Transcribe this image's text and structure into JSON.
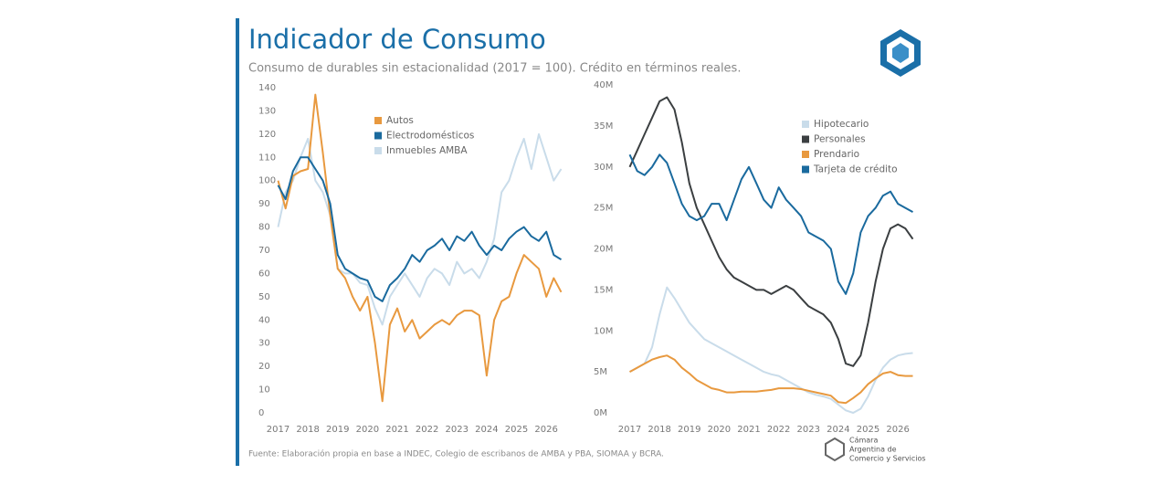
{
  "header": {
    "title": "Indicador de Consumo",
    "subtitle": "Consumo de durables sin estacionalidad (2017 = 100). Crédito en términos reales."
  },
  "footer": {
    "source": "Fuente: Elaboración propia en base a INDEC, Colegio de escribanos de AMBA y PBA, SIOMAA y BCRA.",
    "org": [
      "Cámara",
      "Argentina de",
      "Comercio y Servicios"
    ]
  },
  "chart_data": [
    {
      "type": "line",
      "x": [
        2017,
        2017.25,
        2017.5,
        2017.75,
        2018,
        2018.25,
        2018.5,
        2018.75,
        2019,
        2019.25,
        2019.5,
        2019.75,
        2020,
        2020.25,
        2020.5,
        2020.75,
        2021,
        2021.25,
        2021.5,
        2021.75,
        2022,
        2022.25,
        2022.5,
        2022.75,
        2023,
        2023.25,
        2023.5,
        2023.75,
        2024,
        2024.25,
        2024.5,
        2024.75,
        2025,
        2025.25,
        2025.5,
        2025.75,
        2026,
        2026.25,
        2026.5
      ],
      "xlim": [
        2016.8,
        2026.7
      ],
      "xticks": [
        2017,
        2018,
        2019,
        2020,
        2021,
        2022,
        2023,
        2024,
        2025,
        2026
      ],
      "ylim": [
        0,
        140
      ],
      "yticks": [
        0,
        10,
        20,
        30,
        40,
        50,
        60,
        70,
        80,
        90,
        100,
        110,
        120,
        130,
        140
      ],
      "series": [
        {
          "name": "Inmuebles AMBA",
          "color": "#c9dcea",
          "values": [
            80,
            95,
            100,
            110,
            118,
            100,
            95,
            85,
            62,
            60,
            60,
            56,
            55,
            45,
            38,
            50,
            55,
            60,
            55,
            50,
            58,
            62,
            60,
            55,
            65,
            60,
            62,
            58,
            65,
            75,
            95,
            100,
            110,
            118,
            105,
            120,
            110,
            100,
            105
          ]
        },
        {
          "name": "Autos",
          "color": "#e8993f",
          "values": [
            100,
            88,
            102,
            104,
            105,
            137,
            112,
            85,
            62,
            58,
            50,
            44,
            50,
            30,
            5,
            38,
            45,
            35,
            40,
            32,
            35,
            38,
            40,
            38,
            42,
            44,
            44,
            42,
            16,
            40,
            48,
            50,
            60,
            68,
            65,
            62,
            50,
            58,
            52
          ]
        },
        {
          "name": "Electrodomésticos",
          "color": "#1a6a9e",
          "values": [
            98,
            92,
            104,
            110,
            110,
            105,
            100,
            90,
            68,
            62,
            60,
            58,
            57,
            50,
            48,
            55,
            58,
            62,
            68,
            65,
            70,
            72,
            75,
            70,
            76,
            74,
            78,
            72,
            68,
            72,
            70,
            75,
            78,
            80,
            76,
            74,
            78,
            68,
            66
          ]
        }
      ]
    },
    {
      "type": "line",
      "x": [
        2017,
        2017.25,
        2017.5,
        2017.75,
        2018,
        2018.25,
        2018.5,
        2018.75,
        2019,
        2019.25,
        2019.5,
        2019.75,
        2020,
        2020.25,
        2020.5,
        2020.75,
        2021,
        2021.25,
        2021.5,
        2021.75,
        2022,
        2022.25,
        2022.5,
        2022.75,
        2023,
        2023.25,
        2023.5,
        2023.75,
        2024,
        2024.25,
        2024.5,
        2024.75,
        2025,
        2025.25,
        2025.5,
        2025.75,
        2026,
        2026.25,
        2026.5
      ],
      "xlim": [
        2016.8,
        2026.7
      ],
      "xticks": [
        2017,
        2018,
        2019,
        2020,
        2021,
        2022,
        2023,
        2024,
        2025,
        2026
      ],
      "ylim": [
        0,
        40
      ],
      "yticks": [
        {
          "value": 0,
          "label": "0M"
        },
        {
          "value": 5,
          "label": "5M"
        },
        {
          "value": 10,
          "label": "10M"
        },
        {
          "value": 15,
          "label": "15M"
        },
        {
          "value": 20,
          "label": "20M"
        },
        {
          "value": 25,
          "label": "25M"
        },
        {
          "value": 30,
          "label": "30M"
        },
        {
          "value": 35,
          "label": "35M"
        },
        {
          "value": 40,
          "label": "40M"
        }
      ],
      "series": [
        {
          "name": "Hipotecario",
          "color": "#c9dcea",
          "values": [
            5,
            5.5,
            6,
            8,
            12,
            15.3,
            14,
            12.5,
            11,
            10,
            9,
            8.5,
            8,
            7.5,
            7,
            6.5,
            6,
            5.5,
            5,
            4.7,
            4.5,
            4,
            3.5,
            3,
            2.5,
            2.2,
            2,
            1.7,
            1,
            0.3,
            0,
            0.5,
            2,
            4,
            5.5,
            6.5,
            7,
            7.2,
            7.3
          ]
        },
        {
          "name": "Personales",
          "color": "#3b3f41",
          "values": [
            30,
            32,
            34,
            36,
            38,
            38.5,
            37,
            33,
            28,
            25,
            23,
            21,
            19,
            17.5,
            16.5,
            16,
            15.5,
            15,
            15,
            14.5,
            15,
            15.5,
            15,
            14,
            13,
            12.5,
            12,
            11,
            9,
            6,
            5.7,
            7,
            11,
            16,
            20,
            22.5,
            23,
            22.5,
            21.2
          ]
        },
        {
          "name": "Prendario",
          "color": "#e8993f",
          "values": [
            5,
            5.5,
            6,
            6.5,
            6.8,
            7,
            6.5,
            5.5,
            4.8,
            4,
            3.5,
            3,
            2.8,
            2.5,
            2.5,
            2.6,
            2.6,
            2.6,
            2.7,
            2.8,
            3,
            3,
            3,
            2.9,
            2.7,
            2.5,
            2.3,
            2.1,
            1.3,
            1.2,
            1.8,
            2.5,
            3.5,
            4.2,
            4.8,
            5,
            4.6,
            4.5,
            4.5
          ]
        },
        {
          "name": "Tarjeta de crédito",
          "color": "#1a6a9e",
          "values": [
            31.5,
            29.5,
            29,
            30,
            31.5,
            30.5,
            28,
            25.5,
            24,
            23.5,
            24,
            25.5,
            25.5,
            23.5,
            26,
            28.5,
            30,
            28,
            26,
            25,
            27.5,
            26,
            25,
            24,
            22,
            21.5,
            21,
            20,
            16,
            14.5,
            17,
            22,
            24,
            25,
            26.5,
            27,
            25.5,
            25,
            24.5
          ]
        }
      ]
    }
  ]
}
